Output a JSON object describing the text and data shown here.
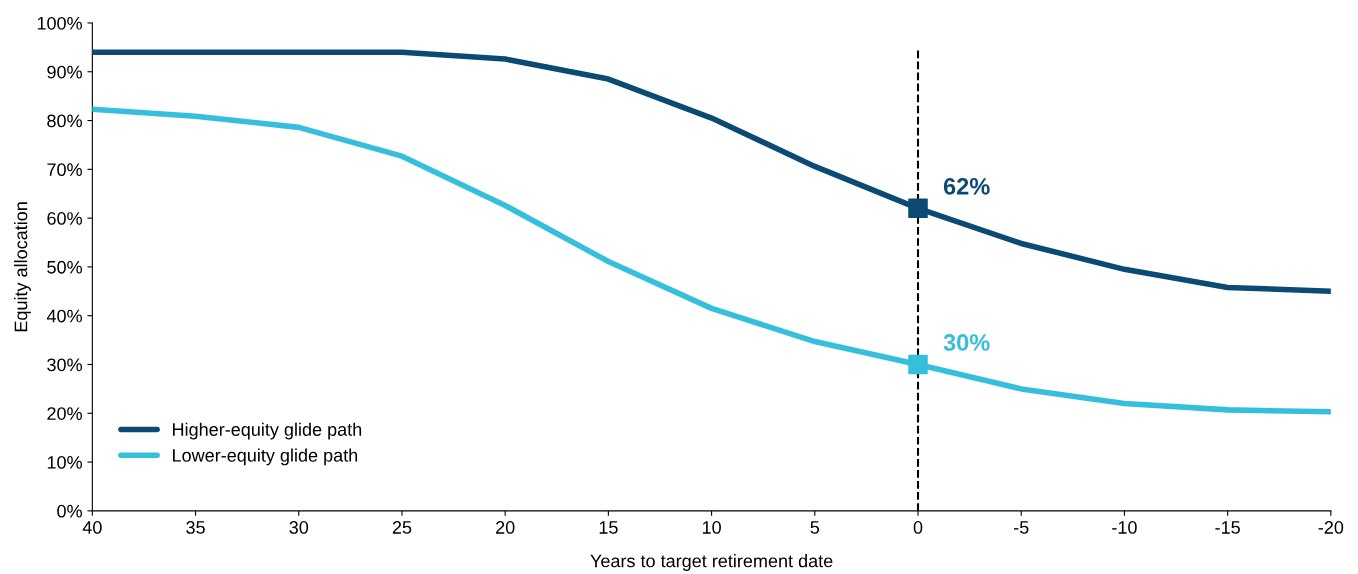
{
  "chart_data": {
    "type": "line",
    "xlabel": "Years to target retirement date",
    "ylabel": "Equity allocation",
    "x": [
      40,
      35,
      30,
      25,
      20,
      15,
      10,
      5,
      0,
      -5,
      -10,
      -15,
      -20
    ],
    "xlim": [
      40,
      -20
    ],
    "xticks": [
      40,
      35,
      30,
      25,
      20,
      15,
      10,
      5,
      0,
      {
        "value": -5,
        "label": "-5"
      },
      {
        "value": -10,
        "label": "-10"
      },
      {
        "value": -15,
        "label": "-15"
      },
      {
        "value": -20,
        "label": "-20"
      }
    ],
    "ylim": [
      0,
      100
    ],
    "yticks": [
      {
        "value": 0,
        "label": "0%"
      },
      {
        "value": 10,
        "label": "10%"
      },
      {
        "value": 20,
        "label": "20%"
      },
      {
        "value": 30,
        "label": "30%"
      },
      {
        "value": 40,
        "label": "40%"
      },
      {
        "value": 50,
        "label": "50%"
      },
      {
        "value": 60,
        "label": "60%"
      },
      {
        "value": 70,
        "label": "70%"
      },
      {
        "value": 80,
        "label": "80%"
      },
      {
        "value": 90,
        "label": "90%"
      },
      {
        "value": 100,
        "label": "100%"
      }
    ],
    "grid": false,
    "legend": "bottom left",
    "line_style": "solid",
    "series": [
      {
        "name": "Higher-equity glide path",
        "color": "#0b4a72",
        "values": [
          94,
          94,
          94,
          94,
          92.6,
          88.5,
          80.5,
          70.6,
          62,
          54.8,
          49.5,
          45.8,
          45
        ]
      },
      {
        "name": "Lower-equity glide path",
        "color": "#35bfdc",
        "values": [
          82.3,
          80.9,
          78.6,
          72.7,
          62.6,
          51.1,
          41.5,
          34.7,
          30,
          25,
          22,
          20.7,
          20.3
        ]
      },
      {
        "type": "scatter",
        "marker": "square",
        "color": "#0b4a72",
        "x": [
          0
        ],
        "values": [
          62
        ],
        "value_labels": [
          "62%"
        ]
      },
      {
        "type": "scatter",
        "marker": "square",
        "color": "#35bfdc",
        "x": [
          0
        ],
        "values": [
          30
        ],
        "value_labels": [
          "30%"
        ]
      }
    ],
    "ref_lines": [
      {
        "axis": "x",
        "value": 0,
        "color": "#000000",
        "line_style": "dashed"
      }
    ]
  }
}
